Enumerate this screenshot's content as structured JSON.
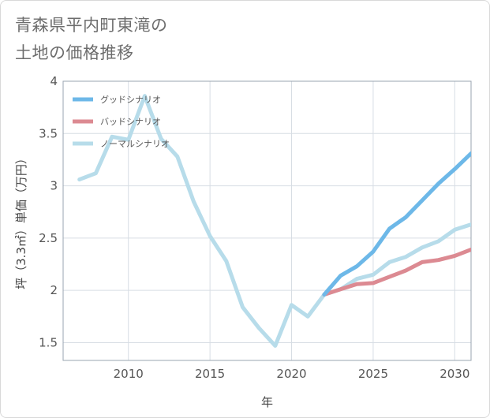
{
  "title_lines": [
    "青森県平内町東滝の",
    "土地の価格推移"
  ],
  "chart_data": {
    "type": "line",
    "xlabel": "年",
    "ylabel": "坪（3.3㎡）単価（万円）",
    "xlim": [
      2006,
      2031
    ],
    "ylim": [
      1.33,
      4.0
    ],
    "xticks": [
      2010,
      2015,
      2020,
      2025,
      2030
    ],
    "yticks": [
      1.5,
      2,
      2.5,
      3,
      3.5,
      4
    ],
    "grid": true,
    "legend_position": "top-left",
    "series": [
      {
        "name": "グッドシナリオ",
        "color": "#6db8e8",
        "x": [
          2022,
          2023,
          2024,
          2025,
          2026,
          2027,
          2028,
          2029,
          2030,
          2031
        ],
        "y": [
          1.96,
          2.14,
          2.23,
          2.37,
          2.59,
          2.7,
          2.86,
          3.02,
          3.16,
          3.31
        ]
      },
      {
        "name": "バッドシナリオ",
        "color": "#dc8a92",
        "x": [
          2022,
          2023,
          2024,
          2025,
          2026,
          2027,
          2028,
          2029,
          2030,
          2031
        ],
        "y": [
          1.96,
          2.01,
          2.06,
          2.07,
          2.13,
          2.19,
          2.27,
          2.29,
          2.33,
          2.39
        ]
      },
      {
        "name": "ノーマルシナリオ",
        "color": "#b7dcea",
        "x": [
          2007,
          2008,
          2009,
          2010,
          2011,
          2012,
          2013,
          2014,
          2015,
          2016,
          2017,
          2018,
          2019,
          2020,
          2021,
          2022,
          2023,
          2024,
          2025,
          2026,
          2027,
          2028,
          2029,
          2030,
          2031
        ],
        "y": [
          3.06,
          3.12,
          3.47,
          3.44,
          3.86,
          3.45,
          3.28,
          2.85,
          2.52,
          2.28,
          1.84,
          1.64,
          1.47,
          1.86,
          1.75,
          1.96,
          2.01,
          2.11,
          2.15,
          2.27,
          2.32,
          2.41,
          2.47,
          2.58,
          2.63
        ]
      }
    ]
  }
}
